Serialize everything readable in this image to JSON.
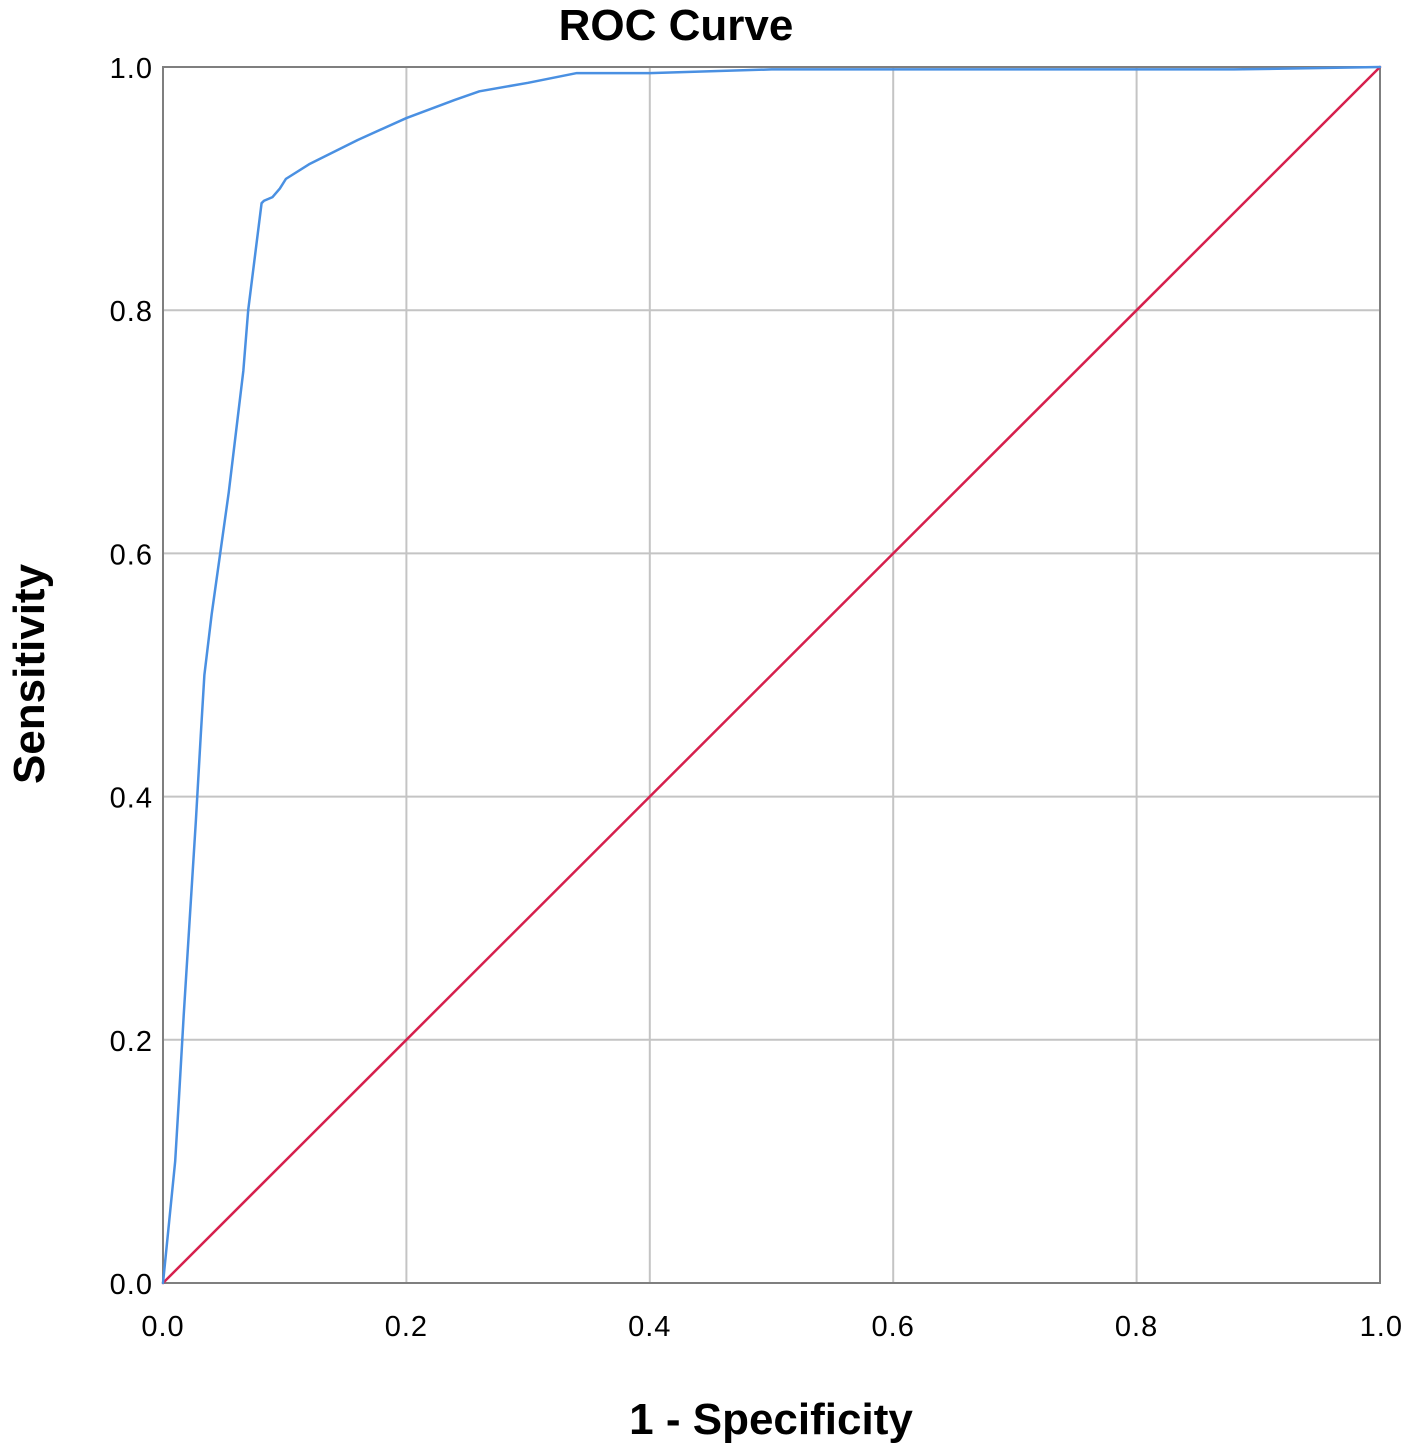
{
  "chart_data": {
    "type": "line",
    "title": "ROC Curve",
    "xlabel": "1 - Specificity",
    "ylabel": "Sensitivity",
    "xlim": [
      0,
      1
    ],
    "ylim": [
      0,
      1
    ],
    "grid": true,
    "legend": "none",
    "x_ticks": [
      "0.0",
      "0.2",
      "0.4",
      "0.6",
      "0.8",
      "1.0"
    ],
    "y_ticks": [
      "0.0",
      "0.2",
      "0.4",
      "0.6",
      "0.8",
      "1.0"
    ],
    "series": [
      {
        "color": "#4a90e2",
        "x": [
          0.0,
          0.005,
          0.01,
          0.013,
          0.017,
          0.022,
          0.027,
          0.031,
          0.034,
          0.04,
          0.047,
          0.054,
          0.06,
          0.066,
          0.07,
          0.075,
          0.081,
          0.083,
          0.09,
          0.096,
          0.101,
          0.12,
          0.16,
          0.2,
          0.24,
          0.26,
          0.3,
          0.34,
          0.4,
          0.5,
          0.6,
          0.88,
          1.0
        ],
        "y": [
          0.0,
          0.05,
          0.1,
          0.15,
          0.22,
          0.3,
          0.38,
          0.45,
          0.5,
          0.55,
          0.6,
          0.65,
          0.7,
          0.75,
          0.8,
          0.84,
          0.888,
          0.89,
          0.893,
          0.9,
          0.908,
          0.92,
          0.94,
          0.958,
          0.973,
          0.98,
          0.987,
          0.995,
          0.995,
          0.998,
          0.998,
          0.998,
          1.0
        ]
      },
      {
        "color": "#d6204d",
        "x": [
          0,
          1
        ],
        "y": [
          0,
          1
        ]
      }
    ]
  },
  "colors": {
    "grid": "#c4c4c4",
    "frame": "#7f7f7f",
    "roc_curve": "#4a90e2",
    "reference_line": "#d6204d"
  }
}
